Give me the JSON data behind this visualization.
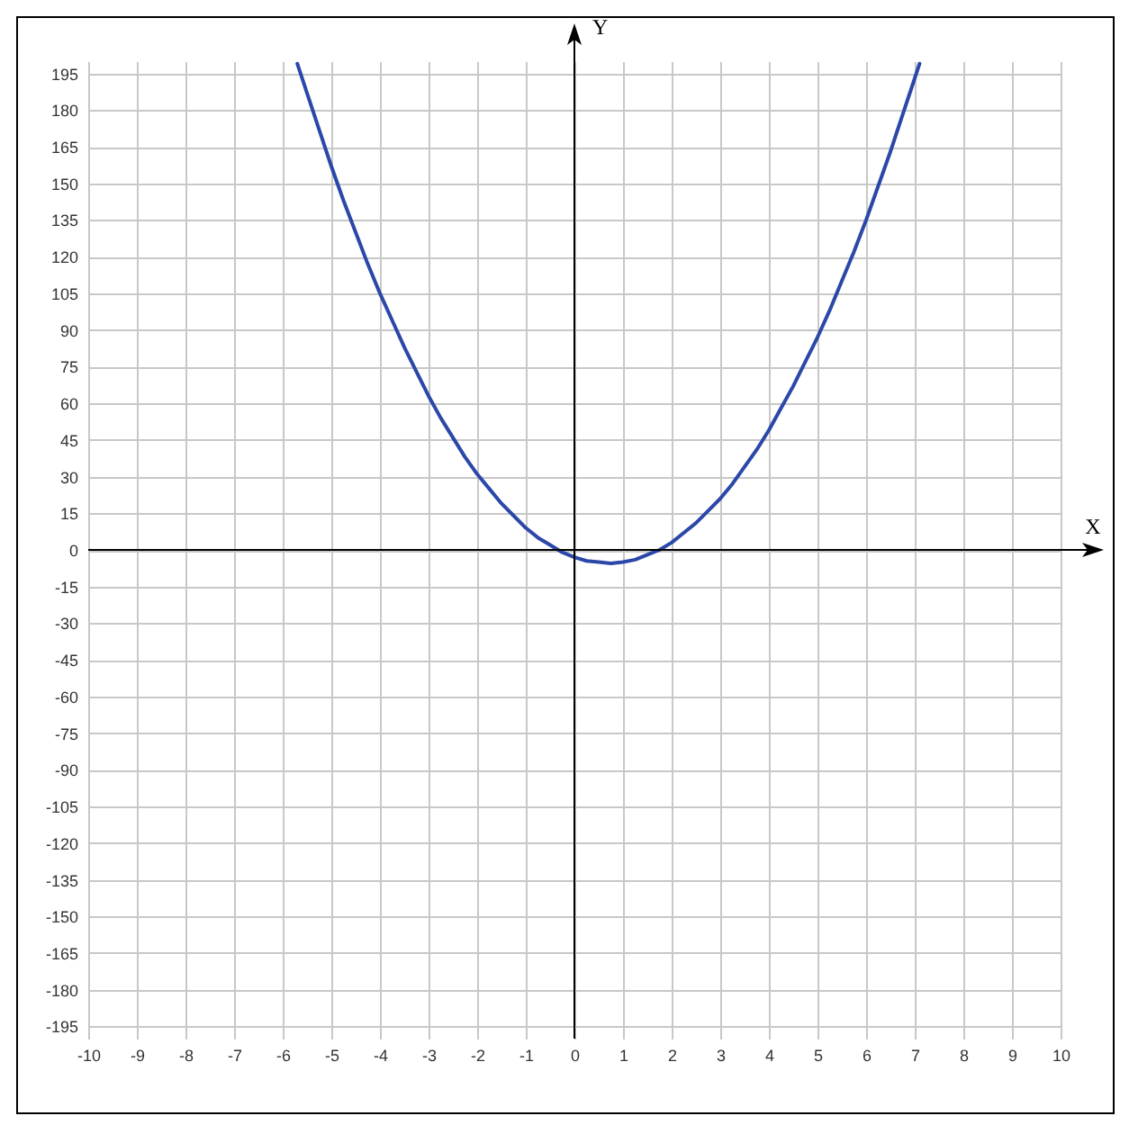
{
  "chart_data": {
    "type": "line",
    "xlabel": "X",
    "ylabel": "Y",
    "x": [
      -5.7,
      -5.5,
      -5.25,
      -5,
      -4.75,
      -4.5,
      -4.25,
      -4,
      -3.75,
      -3.5,
      -3.25,
      -3,
      -2.75,
      -2.5,
      -2.25,
      -2,
      -1.75,
      -1.5,
      -1.25,
      -1,
      -0.75,
      -0.5,
      -0.25,
      0,
      0.25,
      0.5,
      0.75,
      1,
      1.25,
      1.5,
      1.75,
      2,
      2.25,
      2.5,
      2.75,
      3,
      3.25,
      3.5,
      3.75,
      4,
      4.25,
      4.5,
      4.75,
      5,
      5.25,
      5.5,
      5.75,
      6,
      6.25,
      6.5,
      6.75,
      7,
      7.1
    ],
    "series": [
      {
        "color": "#2b47a8",
        "values": [
          199,
          187,
          172,
          157,
          143,
          130,
          117,
          105,
          94,
          83,
          73,
          63,
          54,
          46,
          38,
          31,
          25,
          19,
          14,
          9,
          5,
          2,
          -1,
          -3,
          -4.5,
          -5,
          -5.5,
          -5,
          -4,
          -2,
          0,
          3,
          7,
          11,
          16,
          21,
          27,
          34,
          41,
          49,
          58,
          67,
          77,
          87,
          98,
          110,
          122,
          135,
          149,
          163,
          178,
          193,
          199
        ]
      }
    ],
    "xlim": [
      -10,
      10
    ],
    "ylim": [
      -200,
      200
    ],
    "xticks": [
      -10,
      -9,
      -8,
      -7,
      -6,
      -5,
      -4,
      -3,
      -2,
      -1,
      0,
      1,
      2,
      3,
      4,
      5,
      6,
      7,
      8,
      9,
      10
    ],
    "yticks": [
      -195,
      -180,
      -165,
      -150,
      -135,
      -120,
      -105,
      -90,
      -75,
      -60,
      -45,
      -30,
      -15,
      0,
      15,
      30,
      45,
      60,
      75,
      90,
      105,
      120,
      135,
      150,
      165,
      180,
      195
    ],
    "grid": true
  }
}
